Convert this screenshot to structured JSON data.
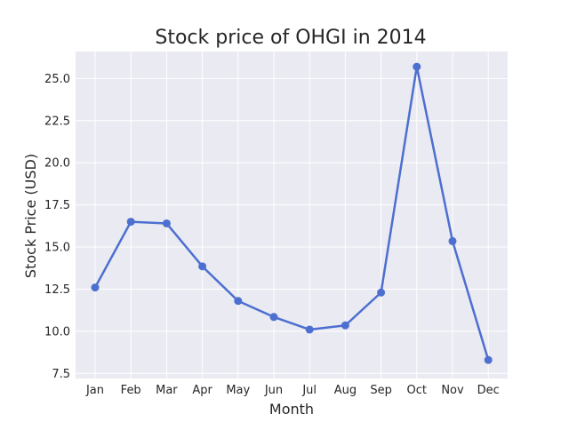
{
  "chart_data": {
    "type": "line",
    "title": "Stock price of OHGI in 2014",
    "xlabel": "Month",
    "ylabel": "Stock Price (USD)",
    "categories": [
      "Jan",
      "Feb",
      "Mar",
      "Apr",
      "May",
      "Jun",
      "Jul",
      "Aug",
      "Sep",
      "Oct",
      "Nov",
      "Dec"
    ],
    "series": [
      {
        "values": [
          12.6,
          16.5,
          16.4,
          13.85,
          11.8,
          10.85,
          10.1,
          10.35,
          12.3,
          25.7,
          15.35,
          8.3
        ]
      }
    ],
    "ylim": [
      7.2,
      26.6
    ],
    "yticks": [
      "7.5",
      "10.0",
      "12.5",
      "15.0",
      "17.5",
      "20.0",
      "22.5",
      "25.0"
    ],
    "grid": true,
    "legend": "none",
    "colors": {
      "line": "#4c6fd0",
      "marker": "#4c6fd0",
      "plot_background": "#eaeaf2",
      "grid": "#ffffff",
      "text": "#262626"
    }
  }
}
